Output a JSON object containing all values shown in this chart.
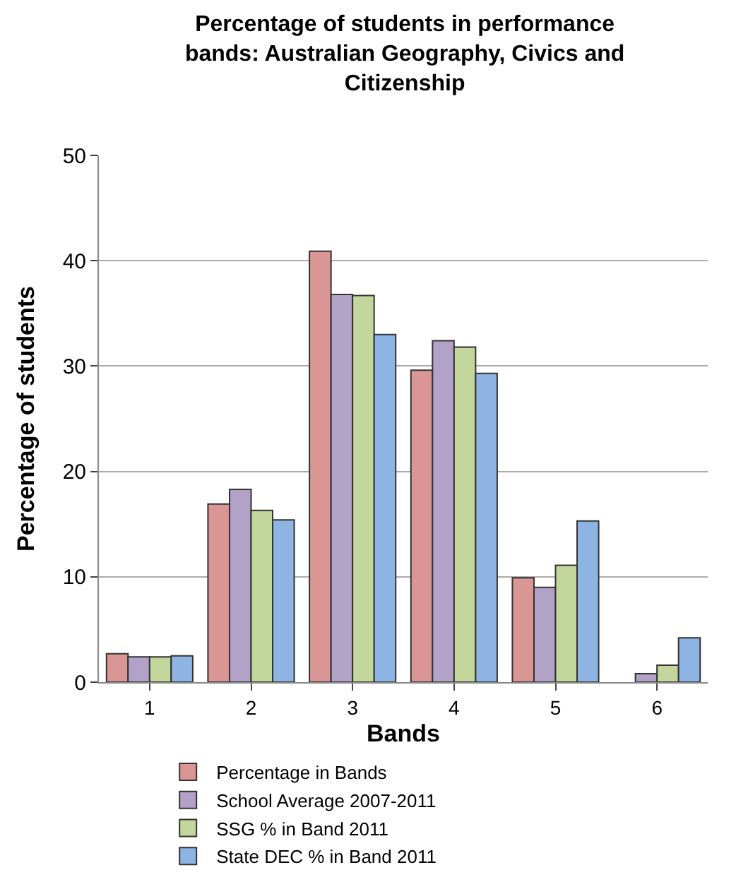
{
  "chart_data": {
    "type": "bar",
    "title": "Percentage of students in performance bands: Australian Geography, Civics and Citizenship",
    "xlabel": "Bands",
    "ylabel": "Percentage of students",
    "categories": [
      "1",
      "2",
      "3",
      "4",
      "5",
      "6"
    ],
    "series": [
      {
        "name": "Percentage in Bands",
        "color": "#d99694",
        "values": [
          2.7,
          16.9,
          40.9,
          29.6,
          9.9,
          null
        ]
      },
      {
        "name": "School Average 2007-2011",
        "color": "#b3a2c7",
        "values": [
          2.4,
          18.3,
          36.8,
          32.4,
          9.0,
          0.8
        ]
      },
      {
        "name": "SSG % in Band 2011",
        "color": "#c3d69b",
        "values": [
          2.4,
          16.3,
          36.7,
          31.8,
          11.1,
          1.6
        ]
      },
      {
        "name": "State DEC % in Band 2011",
        "color": "#8eb4e3",
        "values": [
          2.5,
          15.4,
          33.0,
          29.3,
          15.3,
          4.2
        ]
      }
    ],
    "ylim": [
      0,
      50
    ],
    "yticks": [
      0,
      10,
      20,
      30,
      40,
      50
    ],
    "grid": "y",
    "legend": "bottom"
  }
}
